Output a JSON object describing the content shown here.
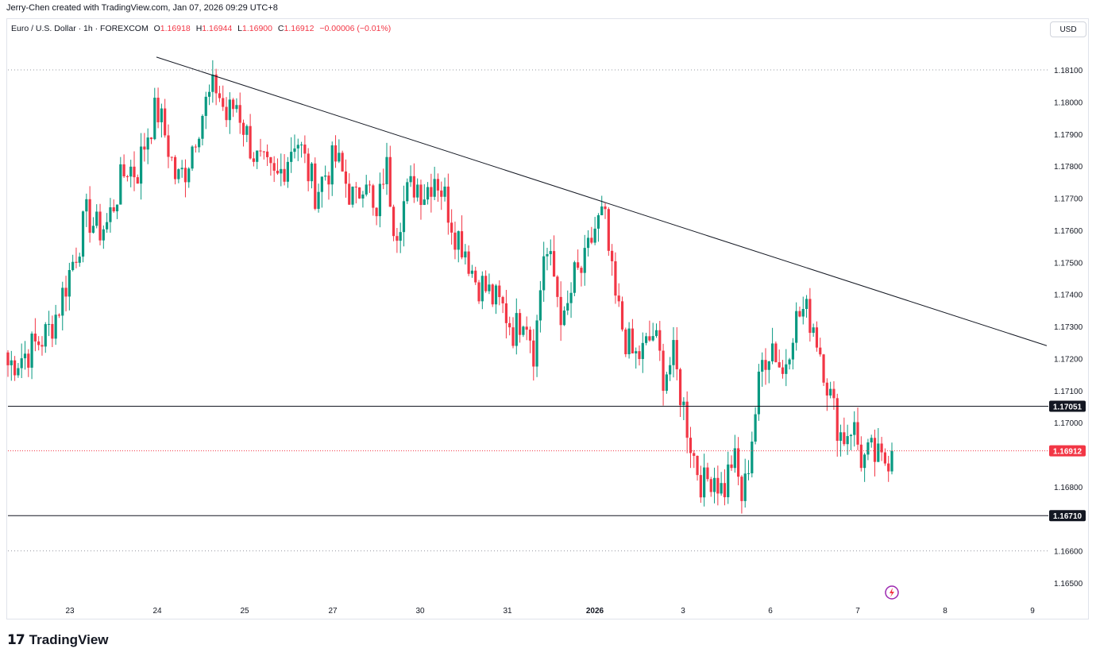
{
  "header": {
    "credit": "Jerry-Chen created with TradingView.com, Jan 07, 2026 09:29 UTC+8",
    "symbol": "Euro / U.S. Dollar · 1h · FOREXCOM",
    "o_label": "O",
    "o_value": "1.16918",
    "h_label": "H",
    "h_value": "1.16944",
    "l_label": "L",
    "l_value": "1.16900",
    "c_label": "C",
    "c_value": "1.16912",
    "change": "−0.00006 (−0.01%)",
    "currency_button": "USD"
  },
  "footer": {
    "brand": "TradingView",
    "logo": "TV-logo-icon"
  },
  "chart_data": {
    "type": "candlestick",
    "title": "Euro / U.S. Dollar · 1h · FOREXCOM",
    "ylim": [
      1.1644,
      1.1825
    ],
    "y_ticks": [
      "1.18100",
      "1.18000",
      "1.17900",
      "1.17800",
      "1.17700",
      "1.17600",
      "1.17500",
      "1.17400",
      "1.17300",
      "1.17200",
      "1.17100",
      "1.17000",
      "1.16800",
      "1.16600",
      "1.16500"
    ],
    "x_ticks": [
      "23",
      "24",
      "25",
      "27",
      "30",
      "31",
      "2026",
      "3",
      "6",
      "7",
      "8",
      "9"
    ],
    "close_path": [
      1.1718,
      1.172,
      1.1722,
      1.1725,
      1.1728,
      1.1735,
      1.1745,
      1.1755,
      1.1765,
      1.176,
      1.1762,
      1.1772,
      1.178,
      1.1778,
      1.179,
      1.1798,
      1.1788,
      1.1775,
      1.178,
      1.1792,
      1.18,
      1.1805,
      1.1795,
      1.18,
      1.179,
      1.1782,
      1.1778,
      1.1775,
      1.1782,
      1.179,
      1.178,
      1.1772,
      1.1778,
      1.1782,
      1.1775,
      1.1768,
      1.178,
      1.176,
      1.1782,
      1.176,
      1.177,
      1.1775,
      1.1772,
      1.1778,
      1.177,
      1.176,
      1.1755,
      1.1745,
      1.1742,
      1.1738,
      1.1735,
      1.1728,
      1.1736,
      1.1722,
      1.1755,
      1.1745,
      1.173,
      1.1745,
      1.1748,
      1.176,
      1.1765,
      1.174,
      1.1728,
      1.172,
      1.1722,
      1.1728,
      1.1715,
      1.172,
      1.1705,
      1.169,
      1.168,
      1.1685,
      1.1678,
      1.169,
      1.1675,
      1.1698,
      1.172,
      1.1725,
      1.1715,
      1.173,
      1.1735,
      1.1732,
      1.172,
      1.1705,
      1.1695,
      1.17,
      1.1688,
      1.169,
      1.1687,
      1.16912
    ],
    "candle_count": 260,
    "last_price": "1.16912",
    "last_price_color": "#f23645",
    "horizontal_levels": [
      {
        "label": "1.17051",
        "value": 1.17051,
        "color": "#131722"
      },
      {
        "label": "1.16710",
        "value": 1.1671,
        "color": "#131722"
      }
    ],
    "dotted_levels": [
      1.181,
      1.166
    ],
    "trendline": {
      "from": {
        "x_index": 20,
        "price": 1.1814
      },
      "to": {
        "x_index": 260,
        "price": 1.1724
      }
    },
    "up_color": "#089981",
    "down_color": "#f23645"
  }
}
